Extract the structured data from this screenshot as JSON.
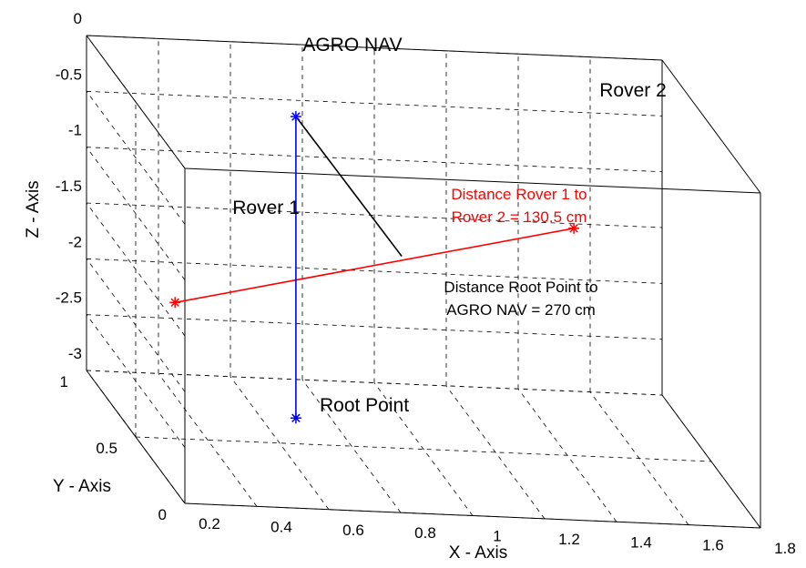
{
  "chart_data": {
    "type": "scatter",
    "projection": "3d",
    "xlabel": "X - Axis",
    "ylabel": "Y - Axis",
    "zlabel": "Z - Axis",
    "xlim": [
      0.2,
      1.8
    ],
    "ylim": [
      0,
      1
    ],
    "zlim": [
      -3,
      0
    ],
    "x_ticks": [
      "0.2",
      "0.4",
      "0.6",
      "0.8",
      "1",
      "1.2",
      "1.4",
      "1.6",
      "1.8"
    ],
    "y_ticks": [
      "0",
      "0.5",
      "1"
    ],
    "z_ticks": [
      "0",
      "-0.5",
      "-1",
      "-1.5",
      "-2",
      "-2.5",
      "-3"
    ],
    "grid": true,
    "series": [
      {
        "name": "Rover 1",
        "color": "#ff0000",
        "marker": "asterisk",
        "points": [
          {
            "x": 0.2,
            "y": 0.1,
            "z": -1.32
          }
        ]
      },
      {
        "name": "Rover 2",
        "color": "#ff0000",
        "marker": "asterisk",
        "points": [
          {
            "x": 1.5,
            "y": 0.8,
            "z": -1.31
          }
        ]
      },
      {
        "name": "AGRO NAV",
        "color": "#0000ff",
        "marker": "asterisk",
        "points": [
          {
            "x": 0.7,
            "y": 0.7,
            "z": -0.3
          }
        ]
      },
      {
        "name": "Root Point",
        "color": "#0000ff",
        "marker": "asterisk",
        "points": [
          {
            "x": 0.7,
            "y": 0.7,
            "z": -3.0
          }
        ]
      }
    ],
    "lines": [
      {
        "from": "Rover 1",
        "to": "Rover 2",
        "color": "#ff0000"
      },
      {
        "from": "Root Point",
        "to": "AGRO NAV",
        "color": "#0000ff"
      },
      {
        "from": "AGRO NAV",
        "to": "Rover 1-Rover 2 midpoint",
        "color": "#000000"
      }
    ],
    "annotations": [
      {
        "text": "AGRO NAV",
        "color": "#000000"
      },
      {
        "text": "Rover 2",
        "color": "#000000"
      },
      {
        "text": "Rover 1",
        "color": "#000000"
      },
      {
        "text": "Root Point",
        "color": "#000000"
      },
      {
        "text": "Distance Rover 1 to",
        "color": "#ff0000"
      },
      {
        "text": "Rover 2 = 130.5 cm",
        "color": "#ff0000"
      },
      {
        "text": "Distance Root Point to",
        "color": "#000000"
      },
      {
        "text": "AGRO NAV = 270 cm",
        "color": "#000000"
      }
    ]
  }
}
